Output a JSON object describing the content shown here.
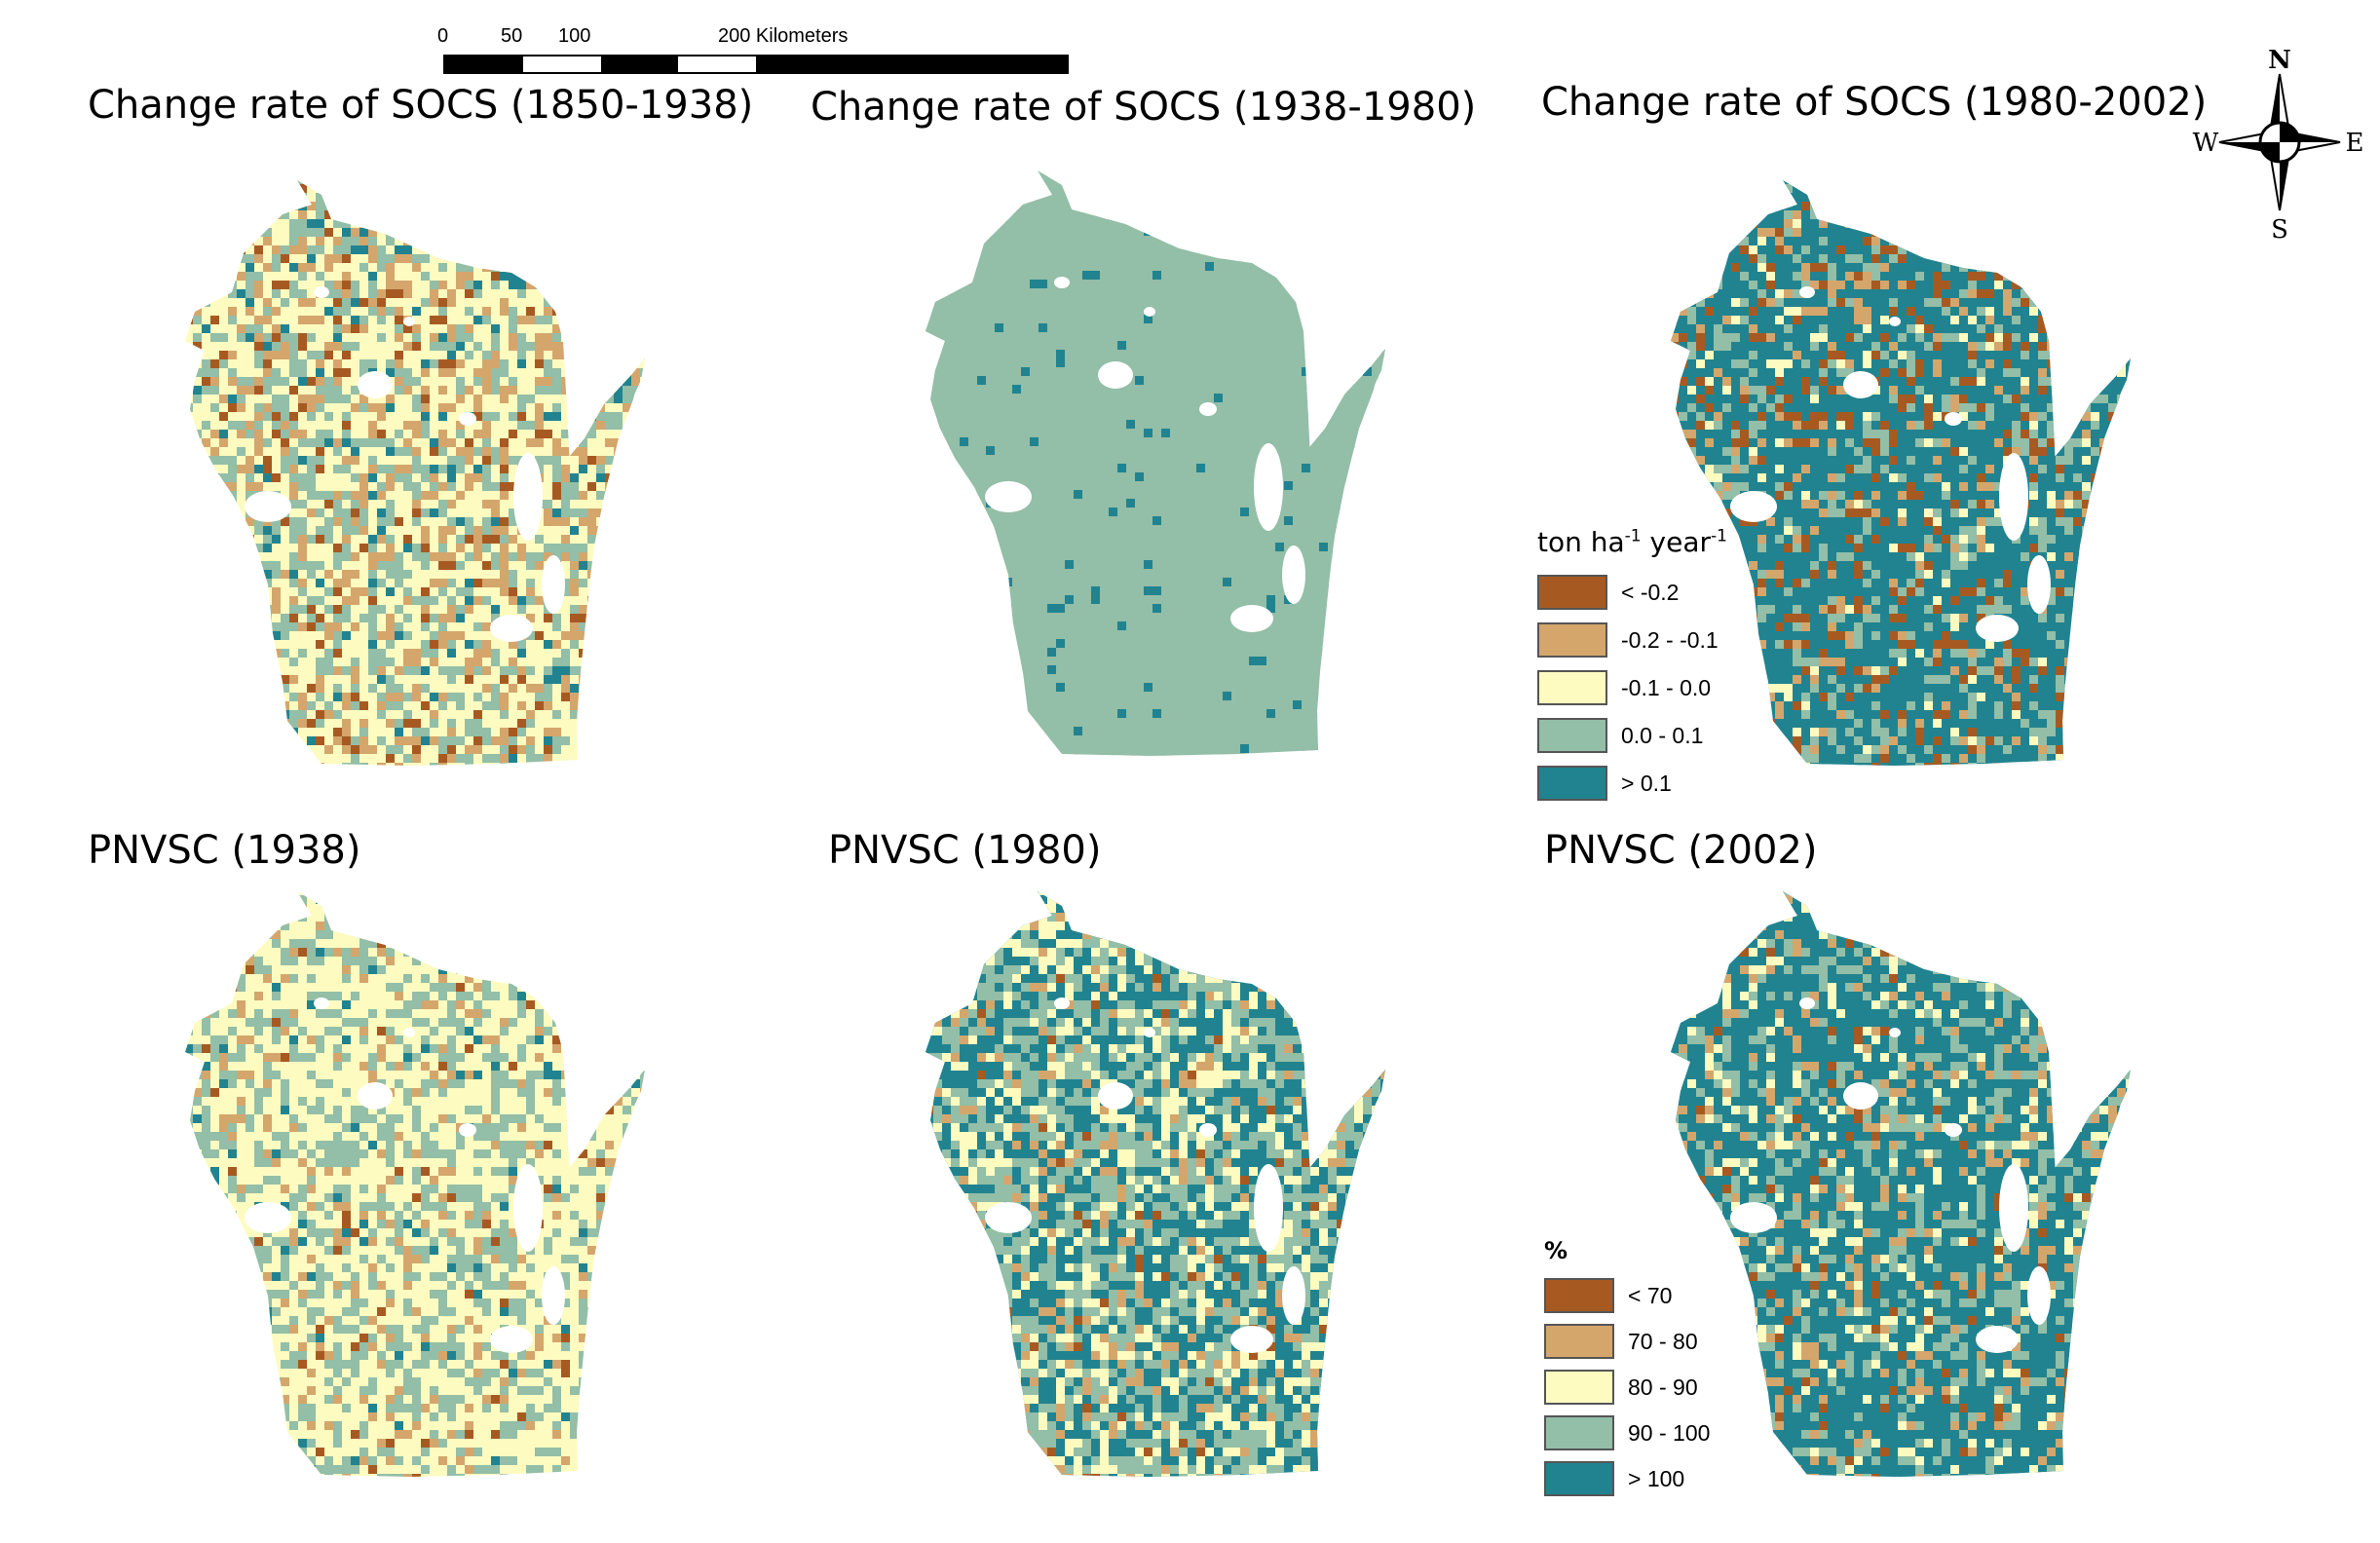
{
  "scale_bar": {
    "ticks": [
      "0",
      "50",
      "100",
      "200 Kilometers"
    ],
    "segments": [
      25,
      25,
      50,
      100
    ]
  },
  "compass": {
    "n": "N",
    "s": "S",
    "e": "E",
    "w": "W"
  },
  "panels": [
    {
      "title": "Change rate of SOCS (1850-1938)",
      "scheme": "socs_1850_1938"
    },
    {
      "title": "Change rate of SOCS (1938-1980)",
      "scheme": "socs_1938_1980"
    },
    {
      "title": "Change rate of SOCS (1980-2002)",
      "scheme": "socs_1980_2002"
    },
    {
      "title": "PNVSC (1938)",
      "scheme": "pnvsc_1938"
    },
    {
      "title": "PNVSC (1980)",
      "scheme": "pnvsc_1980"
    },
    {
      "title": "PNVSC (2002)",
      "scheme": "pnvsc_2002"
    }
  ],
  "legend_socs": {
    "title_main": "ton ha",
    "sup1": "-1",
    "title_mid": " year",
    "sup2": "-1",
    "items": [
      {
        "label": "< -0.2",
        "color": "#a65a22"
      },
      {
        "label": "-0.2 - -0.1",
        "color": "#d4a66c"
      },
      {
        "label": "-0.1 - 0.0",
        "color": "#fdfbc0"
      },
      {
        "label": "0.0 - 0.1",
        "color": "#93bea7"
      },
      {
        "label": "> 0.1",
        "color": "#21838f"
      }
    ]
  },
  "legend_pnvsc": {
    "title": "%",
    "items": [
      {
        "label": "< 70",
        "color": "#a65a22"
      },
      {
        "label": "70 - 80",
        "color": "#d4a66c"
      },
      {
        "label": "80 - 90",
        "color": "#fdfbc0"
      },
      {
        "label": "90 - 100",
        "color": "#93bea7"
      },
      {
        "label": "> 100",
        "color": "#21838f"
      }
    ]
  },
  "class_colors": [
    "#a65a22",
    "#d4a66c",
    "#fdfbc0",
    "#93bea7",
    "#21838f"
  ],
  "class_mix": {
    "socs_1850_1938": [
      0.06,
      0.18,
      0.44,
      0.26,
      0.06
    ],
    "socs_1938_1980": [
      0.0,
      0.0,
      0.0,
      0.97,
      0.03
    ],
    "socs_1980_2002": [
      0.12,
      0.08,
      0.05,
      0.15,
      0.6
    ],
    "pnvsc_1938": [
      0.02,
      0.1,
      0.55,
      0.3,
      0.03
    ],
    "pnvsc_1980": [
      0.02,
      0.08,
      0.22,
      0.33,
      0.35
    ],
    "pnvsc_2002": [
      0.03,
      0.08,
      0.09,
      0.2,
      0.6
    ]
  }
}
